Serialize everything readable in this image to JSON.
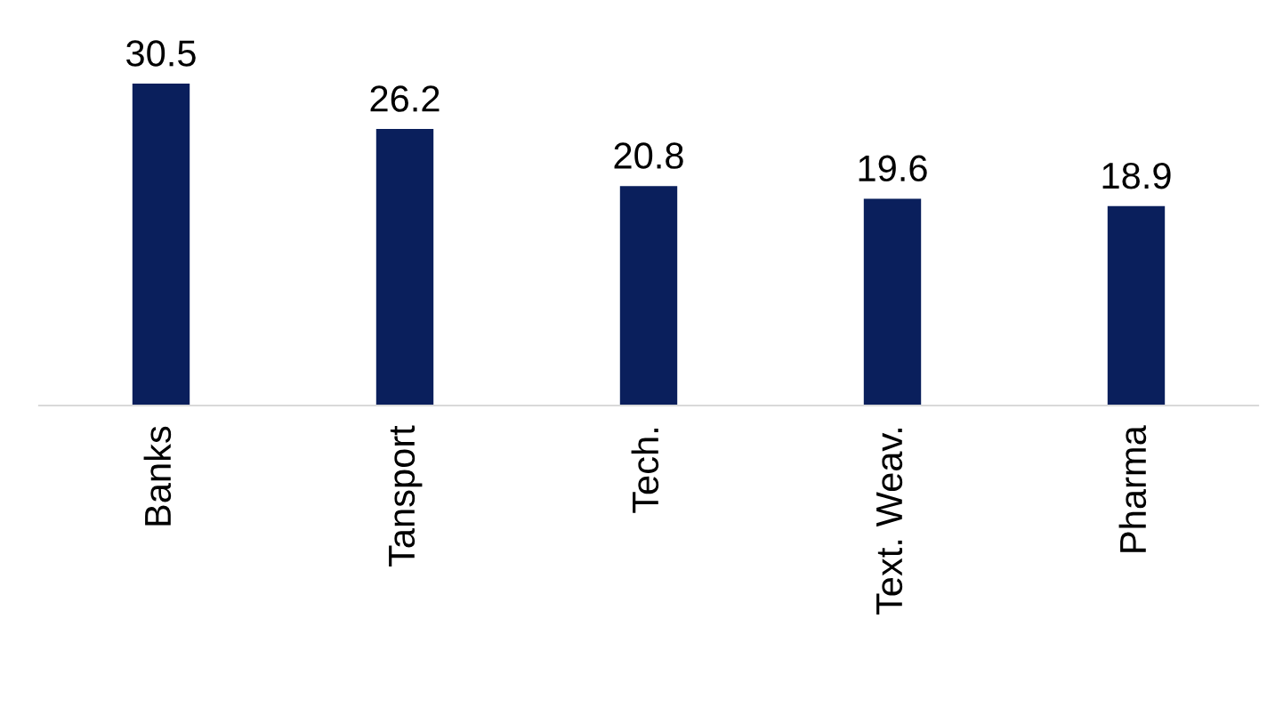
{
  "chart_data": {
    "type": "bar",
    "categories": [
      "Banks",
      "Tansport",
      "Tech.",
      "Text. Weav.",
      "Pharma"
    ],
    "values": [
      30.5,
      26.2,
      20.8,
      19.6,
      18.9
    ],
    "color": "#0a1f5c",
    "data_labels": true,
    "tick_labels": "x",
    "grid": false,
    "legend": false
  }
}
